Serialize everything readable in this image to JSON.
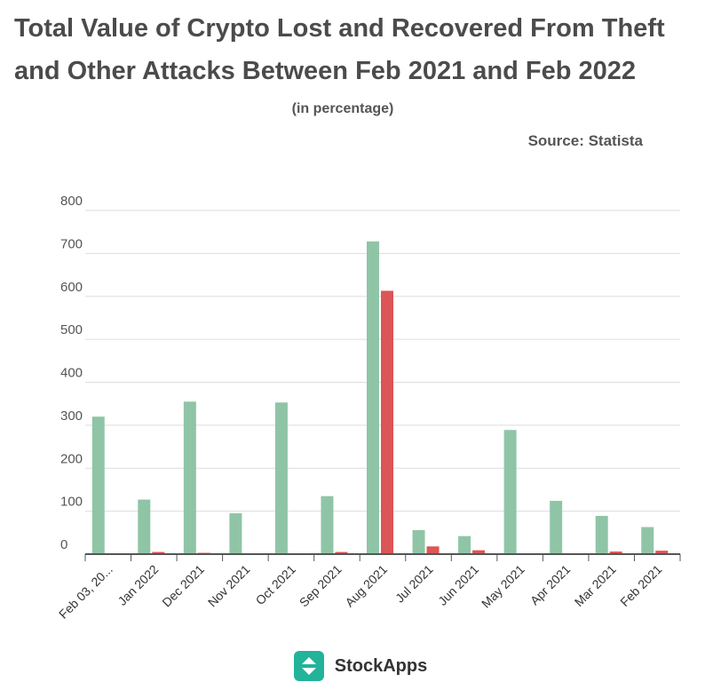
{
  "header": {
    "title": "Total Value of Crypto Lost and Recovered From Theft and Other Attacks Between Feb 2021 and Feb 2022",
    "subtitle": "(in percentage)",
    "source": "Source: Statista"
  },
  "footer": {
    "brand": "StockApps",
    "logo_icon": "stockapps-logo-icon"
  },
  "colors": {
    "series_1": "#8fc5a6",
    "series_2": "#dc5557",
    "grid": "#dddddd",
    "axis": "#555555"
  },
  "chart_data": {
    "type": "bar",
    "title": "Total Value of Crypto Lost and Recovered From Theft and Other Attacks Between Feb 2021 and Feb 2022",
    "subtitle": "(in percentage)",
    "categories": [
      "Feb 03, 20...",
      "Jan 2022",
      "Dec 2021",
      "Nov 2021",
      "Oct 2021",
      "Sep 2021",
      "Aug 2021",
      "Jul 2021",
      "Jun 2021",
      "May 2021",
      "Apr 2021",
      "Mar 2021",
      "Feb 2021"
    ],
    "series": [
      {
        "values": [
          320,
          127,
          355,
          95,
          353,
          135,
          728,
          56,
          42,
          289,
          124,
          89,
          63
        ]
      },
      {
        "values": [
          0,
          5,
          3,
          0,
          0,
          5,
          613,
          18,
          9,
          2,
          1,
          6,
          8
        ]
      }
    ],
    "yticks": [
      0,
      100,
      200,
      300,
      400,
      500,
      600,
      700,
      800
    ],
    "ylim": [
      0,
      800
    ],
    "xlabel": "",
    "ylabel": "",
    "grid": true,
    "legend": "none"
  }
}
